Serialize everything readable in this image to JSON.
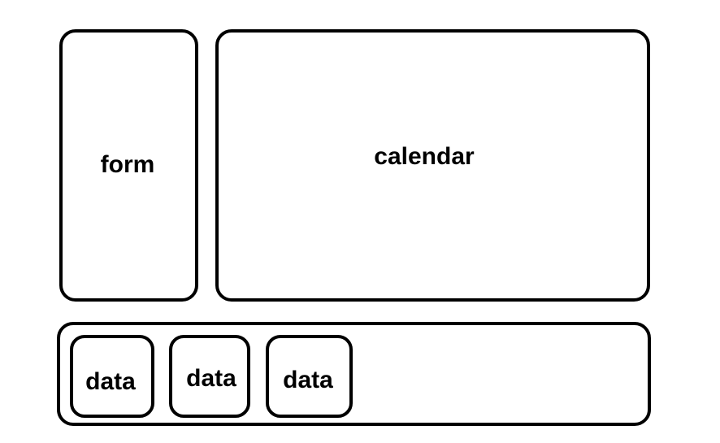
{
  "form": {
    "label": "form"
  },
  "calendar": {
    "label": "calendar"
  },
  "data_items": [
    {
      "label": "data"
    },
    {
      "label": "data"
    },
    {
      "label": "data"
    }
  ]
}
